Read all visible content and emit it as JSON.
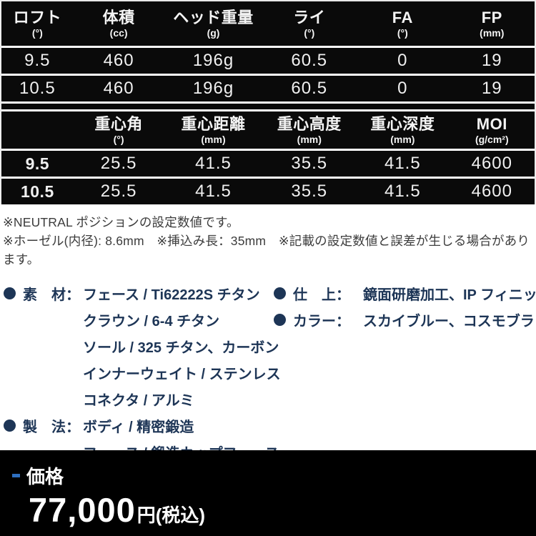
{
  "spec_table_1": {
    "columns": [
      {
        "label": "ロフト",
        "unit": "(°)"
      },
      {
        "label": "体積",
        "unit": "(cc)"
      },
      {
        "label": "ヘッド重量",
        "unit": "(g)"
      },
      {
        "label": "ライ",
        "unit": "(°)"
      },
      {
        "label": "FA",
        "unit": "(°)"
      },
      {
        "label": "FP",
        "unit": "(mm)"
      }
    ],
    "rows": [
      [
        "9.5",
        "460",
        "196g",
        "60.5",
        "0",
        "19"
      ],
      [
        "10.5",
        "460",
        "196g",
        "60.5",
        "0",
        "19"
      ]
    ]
  },
  "spec_table_2": {
    "columns": [
      {
        "label": "",
        "unit": ""
      },
      {
        "label": "重心角",
        "unit": "(°)"
      },
      {
        "label": "重心距離",
        "unit": "(mm)"
      },
      {
        "label": "重心高度",
        "unit": "(mm)"
      },
      {
        "label": "重心深度",
        "unit": "(mm)"
      },
      {
        "label": "MOI",
        "unit": "(g/cm²)"
      }
    ],
    "rows": [
      [
        "9.5",
        "25.5",
        "41.5",
        "35.5",
        "41.5",
        "4600"
      ],
      [
        "10.5",
        "25.5",
        "41.5",
        "35.5",
        "41.5",
        "4600"
      ]
    ]
  },
  "notes": {
    "line1": "※NEUTRAL ポジションの設定数値です。",
    "line2": "※ホーゼル(内径): 8.6mm　※挿込み長：35mm　※記載の設定数値と誤差が生じる場合があります。"
  },
  "materials": {
    "left": [
      {
        "label": "素　材：",
        "value": "フェース / Ti62222S チタン"
      },
      {
        "label": "",
        "value": "クラウン / 6-4 チタン"
      },
      {
        "label": "",
        "value": "ソール / 325 チタン、カーボン"
      },
      {
        "label": "",
        "value": "インナーウェイト / ステンレス"
      },
      {
        "label": "",
        "value": "コネクタ / アルミ"
      },
      {
        "label": "製　法：",
        "value": "ボディ / 精密鍛造"
      },
      {
        "label": "",
        "value": "フェース / 鍛造カップフェース"
      }
    ],
    "right": [
      {
        "label": "仕　上：",
        "value": "鏡面研磨加工、IP フィニッシュ"
      },
      {
        "label": "カラー：",
        "value": "スカイブルー、コスモブラック"
      }
    ]
  },
  "price": {
    "label": "価格",
    "amount": "77,000",
    "suffix": "円(税込)"
  },
  "colors": {
    "table_background": "#0a0a0a",
    "navy_text": "#1d3556",
    "accent_blue": "#2e6fc0",
    "price_background": "#000000"
  }
}
